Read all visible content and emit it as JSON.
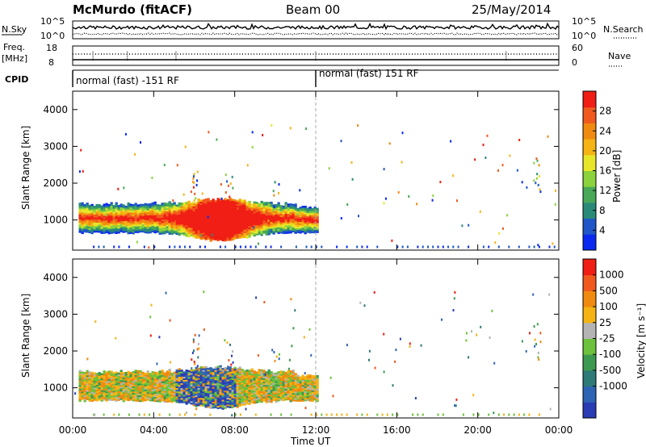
{
  "header": {
    "station": "McMurdo (fitACF)",
    "beam": "Beam 00",
    "date": "25/May/2014"
  },
  "noise_panel": {
    "left_label": "N.Sky",
    "right_label": "N.Search",
    "left_ticks": [
      "10^5",
      "10^0"
    ],
    "right_ticks": [
      "10^5",
      "10^0"
    ]
  },
  "freq_panel": {
    "left_label_1": "Freq.",
    "left_label_2": "[MHz]",
    "right_label": "Nave",
    "left_ticks": [
      "18",
      "8"
    ],
    "right_ticks": [
      "60",
      "0"
    ]
  },
  "cpid_panel": {
    "label": "CPID",
    "segments": [
      "normal (fast) -151 RF",
      "normal (fast) 151 RF"
    ]
  },
  "power_panel": {
    "ylabel": "Slant Range [km]",
    "yticks": [
      "4000",
      "3000",
      "2000",
      "1000"
    ],
    "colorbar_label": "Power [dB]",
    "colorbar_ticks": [
      "28",
      "24",
      "20",
      "16",
      "12",
      "8",
      "4"
    ],
    "colors": [
      "#0a28f0",
      "#1f56c8",
      "#2a8a78",
      "#48a858",
      "#8cd23c",
      "#e8e628",
      "#f5b414",
      "#f08a10",
      "#f05a1e",
      "#f01e14"
    ]
  },
  "velocity_panel": {
    "ylabel": "Slant Range [km]",
    "yticks": [
      "4000",
      "3000",
      "2000",
      "1000"
    ],
    "colorbar_label": "Velocity [m s⁻¹]",
    "colorbar_ticks": [
      "1000",
      "500",
      "100",
      "25",
      "-25",
      "-100",
      "-500",
      "-1000"
    ],
    "colors": [
      "#2a3cb4",
      "#2e64b4",
      "#2e7a78",
      "#3c9a50",
      "#6cc23c",
      "#b4b4b4",
      "#f5b414",
      "#f08a10",
      "#f05a1e",
      "#f01e14"
    ]
  },
  "xaxis": {
    "ticks": [
      "00:00",
      "04:00",
      "08:00",
      "12:00",
      "16:00",
      "20:00",
      "00:00"
    ],
    "label": "Time UT"
  },
  "chart_data": [
    {
      "type": "heatmap",
      "title": "Power",
      "xlabel": "Time UT",
      "ylabel": "Slant Range [km]",
      "x_range_hours": [
        0,
        24
      ],
      "ylim": [
        180,
        4500
      ],
      "colorbar": "Power [dB]",
      "colorbar_range": [
        0,
        32
      ],
      "scatter_region": [
        {
          "time_start": 0.3,
          "time_end": 12.0,
          "range_start": 700,
          "range_end": 1500,
          "dominant": "4-28 dB"
        },
        {
          "time_start": 5.5,
          "time_end": 9.2,
          "range_start": 400,
          "range_end": 1100,
          "dominant": "28 dB"
        }
      ]
    },
    {
      "type": "heatmap",
      "title": "Velocity",
      "xlabel": "Time UT",
      "ylabel": "Slant Range [km]",
      "x_range_hours": [
        0,
        24
      ],
      "ylim": [
        180,
        4500
      ],
      "colorbar": "Velocity [m s⁻¹]",
      "colorbar_range": [
        -1000,
        1000
      ],
      "scatter_region": [
        {
          "time_start": 0.3,
          "time_end": 12.0,
          "range_start": 700,
          "range_end": 1500,
          "dominant": "-100 to 100"
        },
        {
          "time_start": 5.0,
          "time_end": 8.0,
          "range_start": 700,
          "range_end": 1400,
          "dominant": "500 to 1000"
        }
      ]
    }
  ]
}
